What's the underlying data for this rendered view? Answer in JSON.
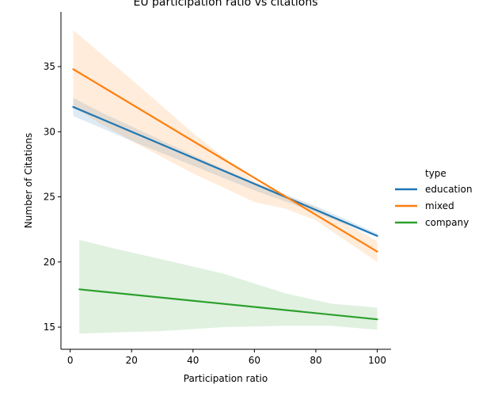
{
  "chart_data": {
    "type": "line",
    "title": "EU participation ratio vs citations",
    "xlabel": "Participation ratio",
    "ylabel": "Number of Citations",
    "xlim": [
      -3,
      104.5
    ],
    "ylim": [
      13.3,
      39.2
    ],
    "xticks": [
      0,
      20,
      40,
      60,
      80,
      100
    ],
    "yticks": [
      15,
      20,
      25,
      30,
      35
    ],
    "grid": false,
    "legend": {
      "title": "type",
      "position": "right"
    },
    "series": [
      {
        "name": "education",
        "color": "#1f77b4",
        "x": [
          1,
          100
        ],
        "y": [
          31.9,
          22.0
        ],
        "ci_x": [
          1,
          10,
          20,
          40,
          60,
          80,
          100
        ],
        "ci_lower": [
          31.2,
          30.3,
          29.3,
          27.4,
          25.5,
          23.8,
          21.9
        ],
        "ci_upper": [
          32.6,
          31.5,
          30.4,
          28.2,
          26.1,
          24.3,
          22.2
        ]
      },
      {
        "name": "mixed",
        "color": "#ff7f0e",
        "x": [
          1,
          100
        ],
        "y": [
          34.8,
          20.8
        ],
        "ci_x": [
          1,
          10,
          20,
          40,
          60,
          70,
          80,
          100
        ],
        "ci_lower": [
          31.9,
          30.6,
          29.3,
          26.8,
          24.6,
          24.1,
          23.2,
          20.0
        ],
        "ci_upper": [
          37.8,
          36.0,
          34.0,
          29.9,
          26.2,
          25.1,
          24.2,
          21.6
        ]
      },
      {
        "name": "company",
        "color": "#2ca02c",
        "x": [
          3,
          100
        ],
        "y": [
          17.9,
          15.6
        ],
        "ci_x": [
          3,
          15,
          30,
          50,
          70,
          85,
          100
        ],
        "ci_lower": [
          14.5,
          14.6,
          14.7,
          15.0,
          15.1,
          15.1,
          14.8
        ],
        "ci_upper": [
          21.7,
          21.0,
          20.2,
          19.1,
          17.6,
          16.8,
          16.5
        ]
      }
    ]
  }
}
